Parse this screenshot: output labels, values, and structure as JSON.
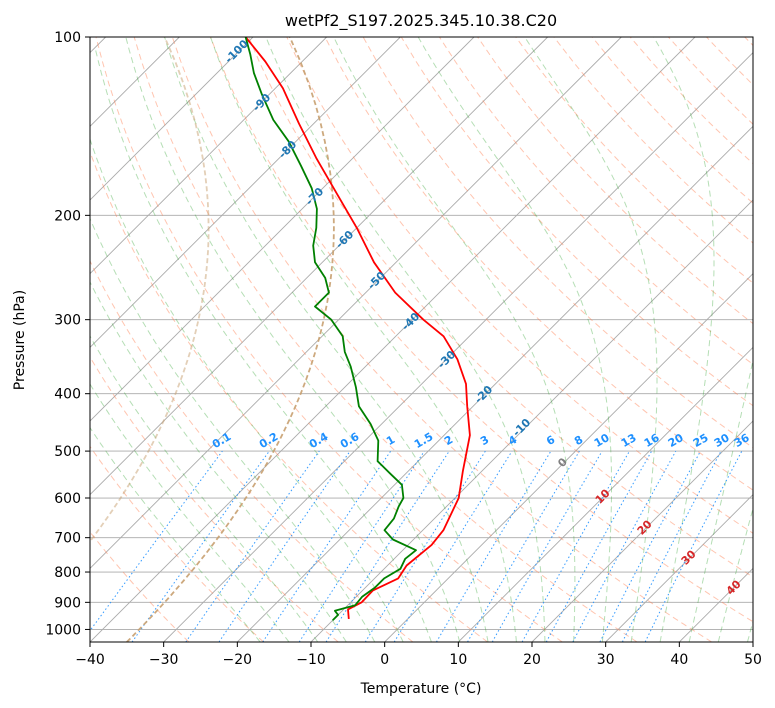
{
  "chart_data": {
    "type": "line",
    "title": "wetPf2_S197.2025.345.10.38.C20",
    "xlabel": "Temperature (°C)",
    "ylabel": "Pressure (hPa)",
    "xlim": [
      -40,
      50
    ],
    "ylim": [
      1050,
      100
    ],
    "y_scale": "log",
    "skew": true,
    "grid": true,
    "x_ticks": [
      -40,
      -30,
      -20,
      -10,
      0,
      10,
      20,
      30,
      40,
      50
    ],
    "x_tick_labels": [
      "−40",
      "−30",
      "−20",
      "−10",
      "0",
      "10",
      "20",
      "30",
      "40",
      "50"
    ],
    "y_ticks": [
      100,
      200,
      300,
      400,
      500,
      600,
      700,
      800,
      900,
      1000
    ],
    "y_tick_labels": [
      "100",
      "200",
      "300",
      "400",
      "500",
      "600",
      "700",
      "800",
      "900",
      "1000"
    ],
    "series": [
      {
        "color": "#ff0000",
        "points": [
          {
            "t": -8,
            "p": 960
          },
          {
            "t": -9.4,
            "p": 925
          },
          {
            "t": -8.5,
            "p": 900
          },
          {
            "t": -8.6,
            "p": 860
          },
          {
            "t": -6.8,
            "p": 820
          },
          {
            "t": -7.4,
            "p": 780
          },
          {
            "t": -6.8,
            "p": 720
          },
          {
            "t": -7.2,
            "p": 680
          },
          {
            "t": -9.5,
            "p": 600
          },
          {
            "t": -12.6,
            "p": 540
          },
          {
            "t": -16.5,
            "p": 470
          },
          {
            "t": -20.8,
            "p": 420
          },
          {
            "t": -24,
            "p": 385
          },
          {
            "t": -28.5,
            "p": 350
          },
          {
            "t": -33.5,
            "p": 320
          },
          {
            "t": -38.5,
            "p": 300
          },
          {
            "t": -46,
            "p": 270
          },
          {
            "t": -53,
            "p": 240
          },
          {
            "t": -60,
            "p": 210
          },
          {
            "t": -67,
            "p": 185
          },
          {
            "t": -75,
            "p": 160
          },
          {
            "t": -82,
            "p": 140
          },
          {
            "t": -89,
            "p": 122
          },
          {
            "t": -95,
            "p": 110
          },
          {
            "t": -101,
            "p": 100
          }
        ]
      },
      {
        "color": "#008000",
        "points": [
          {
            "t": -10,
            "p": 965
          },
          {
            "t": -10,
            "p": 945
          },
          {
            "t": -11,
            "p": 930
          },
          {
            "t": -10,
            "p": 920
          },
          {
            "t": -9,
            "p": 910
          },
          {
            "t": -9.2,
            "p": 880
          },
          {
            "t": -8.7,
            "p": 850
          },
          {
            "t": -8.7,
            "p": 820
          },
          {
            "t": -7.8,
            "p": 790
          },
          {
            "t": -8.5,
            "p": 760
          },
          {
            "t": -8.2,
            "p": 735
          },
          {
            "t": -12.8,
            "p": 705
          },
          {
            "t": -15.2,
            "p": 680
          },
          {
            "t": -15.5,
            "p": 650
          },
          {
            "t": -16.5,
            "p": 620
          },
          {
            "t": -17,
            "p": 600
          },
          {
            "t": -19,
            "p": 570
          },
          {
            "t": -22.2,
            "p": 545
          },
          {
            "t": -25.5,
            "p": 520
          },
          {
            "t": -28.2,
            "p": 480
          },
          {
            "t": -31.5,
            "p": 450
          },
          {
            "t": -35.5,
            "p": 420
          },
          {
            "t": -38.5,
            "p": 390
          },
          {
            "t": -42,
            "p": 360
          },
          {
            "t": -44.8,
            "p": 340
          },
          {
            "t": -47.2,
            "p": 320
          },
          {
            "t": -51,
            "p": 300
          },
          {
            "t": -55,
            "p": 285
          },
          {
            "t": -55,
            "p": 270
          },
          {
            "t": -57.5,
            "p": 255
          },
          {
            "t": -61,
            "p": 240
          },
          {
            "t": -63.5,
            "p": 225
          },
          {
            "t": -65.5,
            "p": 210
          },
          {
            "t": -68,
            "p": 195
          },
          {
            "t": -71.5,
            "p": 180
          },
          {
            "t": -76,
            "p": 165
          },
          {
            "t": -81,
            "p": 150
          },
          {
            "t": -86,
            "p": 138
          },
          {
            "t": -91,
            "p": 125
          },
          {
            "t": -95,
            "p": 115
          },
          {
            "t": -98,
            "p": 107
          },
          {
            "t": -101,
            "p": 100
          }
        ]
      }
    ],
    "isotherm_labels": [
      "-100",
      "-90",
      "-80",
      "-70",
      "-60",
      "-50",
      "-40",
      "-30",
      "-20",
      "-10"
    ],
    "mixing_ratio_labels": [
      "0.1",
      "0.2",
      "0.4",
      "0.6",
      "1",
      "1.5",
      "2",
      "3",
      "4",
      "6",
      "8",
      "10",
      "13",
      "16",
      "20",
      "25",
      "30",
      "36"
    ],
    "moist_adiabat_labels": [
      "0",
      "10",
      "20",
      "30",
      "40"
    ],
    "colors": {
      "isotherm_grid": "#aaaaaa",
      "isobar_grid": "#aaaaaa",
      "isotherm_label": "#1f77b4",
      "dry_adiabat": "#ff7f50",
      "moist_adiabat": "#2ca02c",
      "mixing_ratio": "#1e90ff",
      "moist_label": "#d62728",
      "zero_label": "#808080",
      "outer_curve": "#c8a070"
    }
  }
}
